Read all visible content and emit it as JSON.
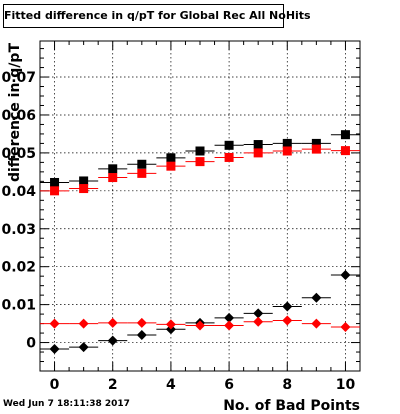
{
  "chart_data": {
    "type": "scatter",
    "title": "Fitted difference in q/pT  for Global Rec All NoHits",
    "xlabel": "No. of Bad Points",
    "ylabel": "difference in q/pT",
    "xlim": [
      -0.5,
      10.5
    ],
    "ylim": [
      -0.0075,
      0.0795
    ],
    "x_ticks": [
      0,
      2,
      4,
      6,
      8,
      10
    ],
    "y_ticks": [
      0,
      0.01,
      0.02,
      0.03,
      0.04,
      0.05,
      0.06,
      0.07
    ],
    "y_tick_labels": [
      "0",
      "0.01",
      "0.02",
      "0.03",
      "0.04",
      "0.05",
      "0.06",
      "0.07"
    ],
    "x_tick_labels": [
      "0",
      "2",
      "4",
      "6",
      "8",
      "10"
    ],
    "grid": true,
    "x": [
      0,
      1,
      2,
      3,
      4,
      5,
      6,
      7,
      8,
      9,
      10
    ],
    "series": [
      {
        "marker": "square",
        "color": "#000000",
        "values": [
          0.0422,
          0.0426,
          0.0458,
          0.047,
          0.0487,
          0.0505,
          0.052,
          0.0522,
          0.0525,
          0.0525,
          0.0548
        ]
      },
      {
        "marker": "square",
        "color": "#ff0000",
        "values": [
          0.04,
          0.0406,
          0.0435,
          0.0446,
          0.0465,
          0.0477,
          0.0488,
          0.05,
          0.0505,
          0.051,
          0.0506
        ]
      },
      {
        "marker": "diamond",
        "color": "#000000",
        "values": [
          -0.0017,
          -0.0012,
          0.0005,
          0.002,
          0.0035,
          0.0052,
          0.0065,
          0.0077,
          0.0095,
          0.0118,
          0.0178
        ]
      },
      {
        "marker": "diamond",
        "color": "#ff0000",
        "values": [
          0.005,
          0.005,
          0.0052,
          0.0052,
          0.0048,
          0.0045,
          0.0045,
          0.0055,
          0.0058,
          0.005,
          0.0041
        ]
      }
    ]
  },
  "footer": {
    "timestamp": "Wed Jun  7 18:11:38 2017"
  }
}
